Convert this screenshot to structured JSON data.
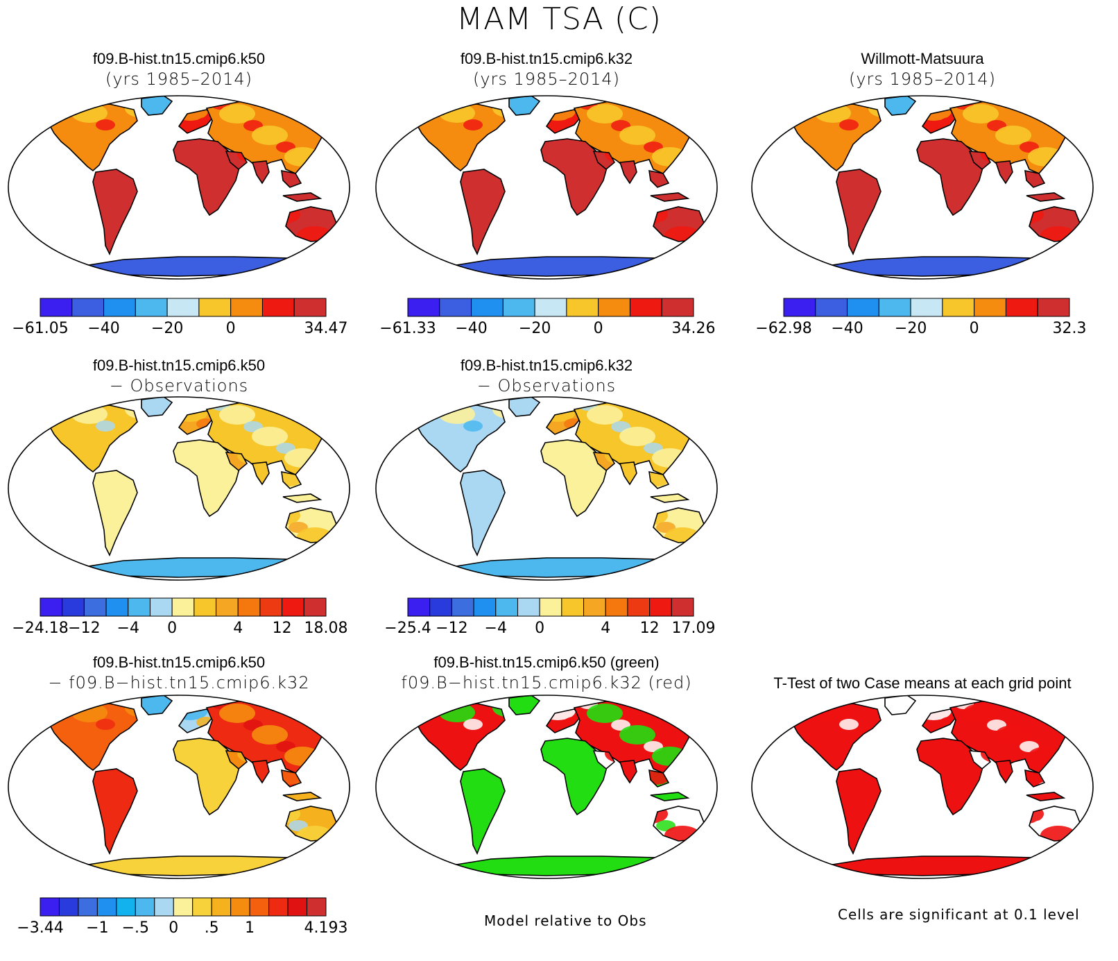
{
  "figure": {
    "title": "MAM TSA (C)",
    "notes": {
      "model_relative": "Model relative to Obs",
      "significance": "Cells are significant at 0.1 level"
    }
  },
  "colors": {
    "abs_scale": [
      "#3a1ff0",
      "#3c5ee0",
      "#1f8ff0",
      "#4cb8ee",
      "#c8e7f5",
      "#f7c62a",
      "#f58c0f",
      "#ee1a12",
      "#cf2f2f"
    ],
    "diff_scale": [
      "#3a1ff0",
      "#2a3bde",
      "#3c6ee0",
      "#1f8ff0",
      "#4cb8ee",
      "#aad8f2",
      "#fbf19a",
      "#f7c62a",
      "#f5a623",
      "#f5780f",
      "#ee3a12",
      "#ee1a12",
      "#cf2f2f"
    ],
    "case_diff_scale": [
      "#3a1ff0",
      "#2a3bde",
      "#3c6ee0",
      "#1f8ff0",
      "#12b2ef",
      "#4cb8ee",
      "#aad8f2",
      "#fbf19a",
      "#f7d23a",
      "#f5b11e",
      "#f58c0f",
      "#f5600f",
      "#ee2a12",
      "#e01212",
      "#cf2f2f"
    ],
    "sig_case1": "#22dd11",
    "sig_case2": "#ee1111",
    "land_outline": "#000000"
  },
  "chart_data": [
    {
      "type": "heatmap",
      "title": "f09.B-hist.tn15.cmip6.k50",
      "subtitle": "(yrs 1985–2014)",
      "colorbar": {
        "min": -61.05,
        "max": 34.47,
        "labels": [
          "−61.05",
          "−40",
          "−20",
          "0",
          "34.47"
        ],
        "levels": 9
      }
    },
    {
      "type": "heatmap",
      "title": "f09.B-hist.tn15.cmip6.k32",
      "subtitle": "(yrs 1985–2014)",
      "colorbar": {
        "min": -61.33,
        "max": 34.26,
        "labels": [
          "−61.33",
          "−40",
          "−20",
          "0",
          "34.26"
        ],
        "levels": 9
      }
    },
    {
      "type": "heatmap",
      "title": "Willmott-Matsuura",
      "subtitle": "(yrs 1985–2014)",
      "colorbar": {
        "min": -62.98,
        "max": 32.3,
        "labels": [
          "−62.98",
          "−40",
          "−20",
          "0",
          "32.3"
        ],
        "levels": 9
      }
    },
    {
      "type": "heatmap",
      "title": "f09.B-hist.tn15.cmip6.k50",
      "subtitle": "− Observations",
      "colorbar": {
        "min": -24.18,
        "max": 18.08,
        "labels": [
          "−24.18",
          "−12",
          "−4",
          "0",
          "4",
          "12",
          "18.08"
        ],
        "levels": 13
      }
    },
    {
      "type": "heatmap",
      "title": "f09.B-hist.tn15.cmip6.k32",
      "subtitle": "− Observations",
      "colorbar": {
        "min": -25.4,
        "max": 17.09,
        "labels": [
          "−25.4",
          "−12",
          "−4",
          "0",
          "4",
          "12",
          "17.09"
        ],
        "levels": 13
      }
    },
    {
      "type": "heatmap",
      "title": "f09.B-hist.tn15.cmip6.k50",
      "subtitle": "− f09.B−hist.tn15.cmip6.k32",
      "colorbar": {
        "min": -3.44,
        "max": 4.193,
        "labels": [
          "−3.44",
          "−1",
          "−.5",
          "0",
          ".5",
          "1",
          "4.193"
        ],
        "levels": 15
      }
    },
    {
      "type": "heatmap",
      "title": "f09.B-hist.tn15.cmip6.k50 (green)",
      "subtitle": "f09.B−hist.tn15.cmip6.k32 (red)"
    },
    {
      "type": "heatmap",
      "title": "T-Test of two Case means at each grid point",
      "subtitle": ""
    }
  ]
}
